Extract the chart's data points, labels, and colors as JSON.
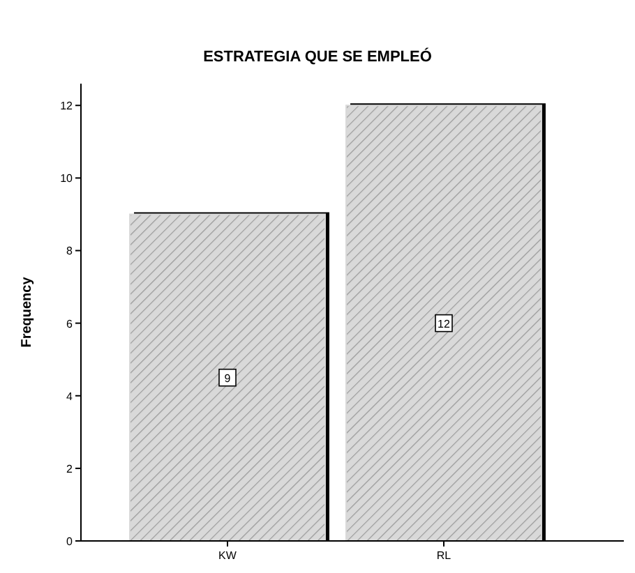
{
  "chart_data": {
    "type": "bar",
    "title": "ESTRATEGIA QUE SE EMPLEÓ",
    "ylabel": "Frequency",
    "categories": [
      "KW",
      "RL"
    ],
    "values": [
      9,
      12
    ],
    "color": "#d9d9d9",
    "ylim": [
      0,
      12.6
    ],
    "yticks": [
      0,
      2,
      4,
      6,
      8,
      10,
      12
    ],
    "data_labels": true,
    "grid": false
  }
}
